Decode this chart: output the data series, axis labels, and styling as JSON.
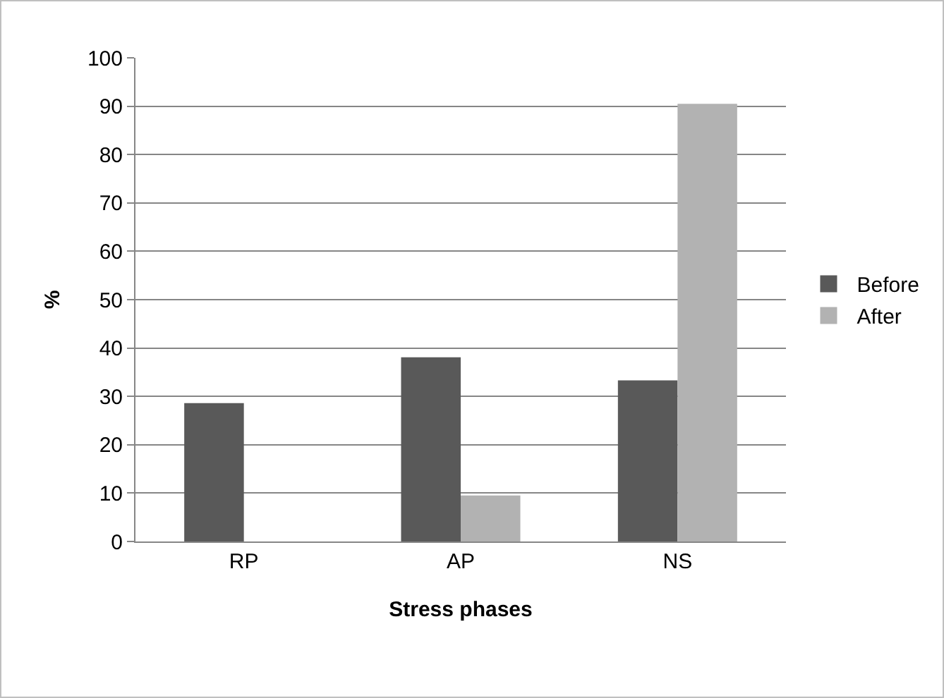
{
  "chart_data": {
    "type": "bar",
    "xlabel": "Stress phases",
    "ylabel": "%",
    "categories": [
      "RP",
      "AP",
      "NS"
    ],
    "series": [
      {
        "name": "Before",
        "color": "#595959",
        "values": [
          28.6,
          38.1,
          33.3
        ]
      },
      {
        "name": "After",
        "color": "#b2b2b2",
        "values": [
          0,
          9.5,
          90.5
        ]
      }
    ],
    "ylim": [
      0,
      100
    ],
    "yticks": [
      0,
      10,
      20,
      30,
      40,
      50,
      60,
      70,
      80,
      90,
      100
    ],
    "grid": "y",
    "legend": "right"
  }
}
